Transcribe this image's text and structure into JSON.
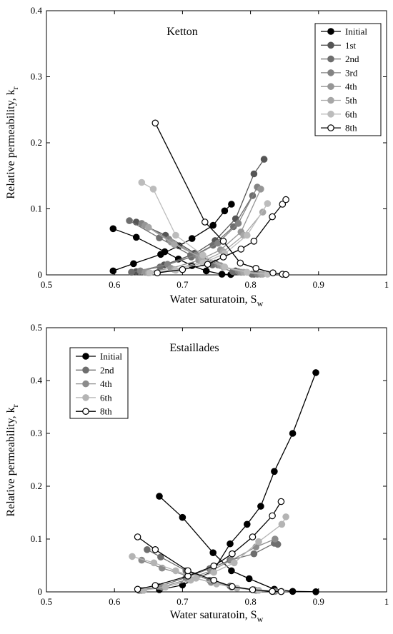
{
  "chart_data": [
    {
      "type": "line",
      "title": "Ketton",
      "xlabel": "Water saturatoin, S",
      "xlabel_sub": "w",
      "ylabel": "Relative permeability, k",
      "ylabel_sub": "r",
      "xlim": [
        0.5,
        1
      ],
      "ylim": [
        0,
        0.4
      ],
      "xticks": [
        "0.5",
        "0.6",
        "0.7",
        "0.8",
        "0.9",
        "1"
      ],
      "yticks": [
        "0",
        "0.1",
        "0.2",
        "0.3",
        "0.4"
      ],
      "grid": false,
      "legend_position": "top-right",
      "series": [
        {
          "name": "Initial",
          "color": "#000000",
          "hollow": false,
          "water": {
            "x": [
              0.598,
              0.628,
              0.668,
              0.695,
              0.714,
              0.745,
              0.762,
              0.772
            ],
            "y": [
              0.006,
              0.017,
              0.031,
              0.044,
              0.055,
              0.075,
              0.097,
              0.107
            ]
          },
          "oil": {
            "x": [
              0.598,
              0.632,
              0.674,
              0.694,
              0.714,
              0.735,
              0.758,
              0.771
            ],
            "y": [
              0.07,
              0.057,
              0.035,
              0.024,
              0.014,
              0.006,
              0.001,
              0.0005
            ]
          }
        },
        {
          "name": "1st",
          "color": "#555555",
          "hollow": false,
          "water": {
            "x": [
              0.632,
              0.673,
              0.718,
              0.748,
              0.778,
              0.805,
              0.82
            ],
            "y": [
              0.005,
              0.015,
              0.032,
              0.052,
              0.085,
              0.153,
              0.175
            ]
          },
          "oil": {
            "x": [
              0.632,
              0.675,
              0.718,
              0.748,
              0.778,
              0.805
            ],
            "y": [
              0.08,
              0.06,
              0.033,
              0.018,
              0.006,
              0.001
            ]
          }
        },
        {
          "name": "2nd",
          "color": "#6e6e6e",
          "hollow": false,
          "water": {
            "x": [
              0.625,
              0.667,
              0.713,
              0.745,
              0.775,
              0.803
            ],
            "y": [
              0.004,
              0.012,
              0.027,
              0.045,
              0.073,
              0.12
            ]
          },
          "oil": {
            "x": [
              0.622,
              0.666,
              0.712,
              0.744,
              0.774,
              0.802
            ],
            "y": [
              0.082,
              0.056,
              0.03,
              0.015,
              0.005,
              0.001
            ]
          }
        },
        {
          "name": "3rd",
          "color": "#838383",
          "hollow": false,
          "water": {
            "x": [
              0.638,
              0.678,
              0.72,
              0.752,
              0.782,
              0.81
            ],
            "y": [
              0.006,
              0.016,
              0.03,
              0.048,
              0.078,
              0.133
            ]
          },
          "oil": {
            "x": [
              0.64,
              0.68,
              0.72,
              0.752,
              0.782,
              0.81
            ],
            "y": [
              0.078,
              0.054,
              0.03,
              0.015,
              0.005,
              0.001
            ]
          }
        },
        {
          "name": "4th",
          "color": "#969696",
          "hollow": false,
          "water": {
            "x": [
              0.645,
              0.683,
              0.724,
              0.756,
              0.786,
              0.815
            ],
            "y": [
              0.004,
              0.01,
              0.022,
              0.038,
              0.065,
              0.13
            ]
          },
          "oil": {
            "x": [
              0.645,
              0.683,
              0.724,
              0.756,
              0.786,
              0.815
            ],
            "y": [
              0.075,
              0.05,
              0.028,
              0.014,
              0.004,
              0.001
            ]
          }
        },
        {
          "name": "5th",
          "color": "#a7a7a7",
          "hollow": false,
          "water": {
            "x": [
              0.65,
              0.688,
              0.728,
              0.76,
              0.79,
              0.818
            ],
            "y": [
              0.003,
              0.008,
              0.02,
              0.035,
              0.06,
              0.095
            ]
          },
          "oil": {
            "x": [
              0.65,
              0.688,
              0.728,
              0.76,
              0.79,
              0.818
            ],
            "y": [
              0.072,
              0.046,
              0.026,
              0.012,
              0.004,
              0.001
            ]
          }
        },
        {
          "name": "6th",
          "color": "#bcbcbc",
          "hollow": false,
          "water": {
            "x": [
              0.652,
              0.69,
              0.73,
              0.762,
              0.795,
              0.825
            ],
            "y": [
              0.003,
              0.007,
              0.018,
              0.032,
              0.06,
              0.108
            ]
          },
          "oil": {
            "x": [
              0.64,
              0.657,
              0.69,
              0.73,
              0.762,
              0.795,
              0.825
            ],
            "y": [
              0.14,
              0.13,
              0.06,
              0.03,
              0.012,
              0.004,
              0.001
            ]
          }
        },
        {
          "name": "8th",
          "color": "#000000",
          "hollow": true,
          "water": {
            "x": [
              0.663,
              0.7,
              0.737,
              0.76,
              0.786,
              0.805,
              0.832,
              0.847,
              0.852
            ],
            "y": [
              0.003,
              0.008,
              0.016,
              0.027,
              0.039,
              0.051,
              0.088,
              0.107,
              0.114
            ]
          },
          "oil": {
            "x": [
              0.66,
              0.733,
              0.76,
              0.785,
              0.808,
              0.833,
              0.847,
              0.852
            ],
            "y": [
              0.23,
              0.08,
              0.051,
              0.018,
              0.01,
              0.003,
              0.001,
              0.0005
            ]
          }
        }
      ]
    },
    {
      "type": "line",
      "title": "Estaillades",
      "xlabel": "Water saturatoin, S",
      "xlabel_sub": "w",
      "ylabel": "Relative permeability, k",
      "ylabel_sub": "r",
      "xlim": [
        0.5,
        1
      ],
      "ylim": [
        0,
        0.5
      ],
      "xticks": [
        "0.5",
        "0.6",
        "0.7",
        "0.8",
        "0.9",
        "1"
      ],
      "yticks": [
        "0",
        "0.1",
        "0.2",
        "0.3",
        "0.4",
        "0.5"
      ],
      "grid": false,
      "legend_position": "top-left",
      "series": [
        {
          "name": "Initial",
          "color": "#000000",
          "hollow": false,
          "water": {
            "x": [
              0.666,
              0.7,
              0.745,
              0.77,
              0.795,
              0.815,
              0.835,
              0.862,
              0.896
            ],
            "y": [
              0.004,
              0.013,
              0.039,
              0.091,
              0.128,
              0.162,
              0.228,
              0.3,
              0.415
            ]
          },
          "oil": {
            "x": [
              0.666,
              0.7,
              0.745,
              0.772,
              0.798,
              0.835,
              0.862,
              0.896
            ],
            "y": [
              0.181,
              0.141,
              0.074,
              0.04,
              0.025,
              0.005,
              0.001,
              0.0003
            ]
          }
        },
        {
          "name": "2nd",
          "color": "#6e6e6e",
          "hollow": false,
          "water": {
            "x": [
              0.636,
              0.665,
              0.705,
              0.74,
              0.77,
              0.805,
              0.835,
              0.84
            ],
            "y": [
              0.003,
              0.01,
              0.027,
              0.044,
              0.06,
              0.072,
              0.092,
              0.09
            ]
          },
          "oil": {
            "x": [
              0.648,
              0.668,
              0.705,
              0.74,
              0.77,
              0.805,
              0.835
            ],
            "y": [
              0.08,
              0.066,
              0.04,
              0.022,
              0.011,
              0.004,
              0.001
            ]
          }
        },
        {
          "name": "4th",
          "color": "#8c8c8c",
          "hollow": false,
          "water": {
            "x": [
              0.64,
              0.67,
              0.708,
              0.742,
              0.772,
              0.808,
              0.836
            ],
            "y": [
              0.003,
              0.009,
              0.024,
              0.04,
              0.06,
              0.085,
              0.1
            ]
          },
          "oil": {
            "x": [
              0.64,
              0.67,
              0.708,
              0.742,
              0.772,
              0.808,
              0.836
            ],
            "y": [
              0.06,
              0.045,
              0.03,
              0.018,
              0.009,
              0.003,
              0.001
            ]
          }
        },
        {
          "name": "6th",
          "color": "#b4b4b4",
          "hollow": false,
          "water": {
            "x": [
              0.643,
              0.675,
              0.712,
              0.746,
              0.776,
              0.812,
              0.846,
              0.852
            ],
            "y": [
              0.003,
              0.009,
              0.022,
              0.037,
              0.055,
              0.095,
              0.128,
              0.142
            ]
          },
          "oil": {
            "x": [
              0.626,
              0.658,
              0.69,
              0.72,
              0.75,
              0.78,
              0.812,
              0.846
            ],
            "y": [
              0.067,
              0.055,
              0.04,
              0.026,
              0.015,
              0.007,
              0.003,
              0.001
            ]
          }
        },
        {
          "name": "8th",
          "color": "#000000",
          "hollow": true,
          "water": {
            "x": [
              0.634,
              0.66,
              0.708,
              0.746,
              0.773,
              0.803,
              0.832,
              0.845
            ],
            "y": [
              0.005,
              0.012,
              0.03,
              0.049,
              0.072,
              0.104,
              0.144,
              0.171
            ]
          },
          "oil": {
            "x": [
              0.634,
              0.66,
              0.708,
              0.746,
              0.773,
              0.803,
              0.832,
              0.845
            ],
            "y": [
              0.104,
              0.08,
              0.04,
              0.022,
              0.01,
              0.004,
              0.001,
              0.0005
            ]
          }
        }
      ]
    }
  ]
}
